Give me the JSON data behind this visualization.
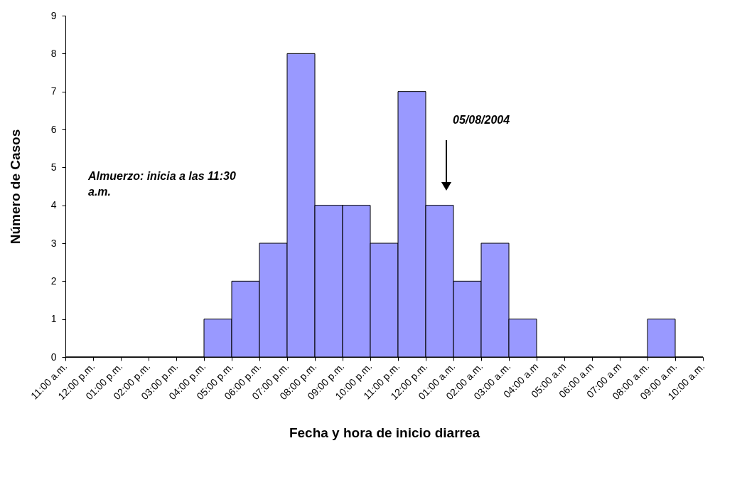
{
  "chart_data": {
    "type": "histogram",
    "xlabel": "Fecha y hora de inicio diarrea",
    "ylabel": "Número de Casos",
    "bins": [
      "2004-08-04T11:00",
      "2004-08-04T12:00",
      "2004-08-04T13:00",
      "2004-08-04T14:00",
      "2004-08-04T15:00",
      "2004-08-04T16:00",
      "2004-08-04T17:00",
      "2004-08-04T18:00",
      "2004-08-04T19:00",
      "2004-08-04T20:00",
      "2004-08-04T21:00",
      "2004-08-04T22:00",
      "2004-08-04T23:00",
      "2004-08-05T00:00",
      "2004-08-05T01:00",
      "2004-08-05T02:00",
      "2004-08-05T03:00",
      "2004-08-05T04:00",
      "2004-08-05T05:00",
      "2004-08-05T06:00",
      "2004-08-05T07:00",
      "2004-08-05T08:00",
      "2004-08-05T09:00",
      "2004-08-05T10:00"
    ],
    "values": [
      0,
      0,
      0,
      0,
      0,
      1,
      2,
      3,
      8,
      4,
      4,
      3,
      7,
      4,
      2,
      3,
      1,
      0,
      0,
      0,
      0,
      1,
      0
    ],
    "color": "#9999ff",
    "xlim": [
      "2004-08-04T11:00",
      "2004-08-05T10:00"
    ],
    "ylim": [
      0,
      9
    ],
    "yticks": [
      0,
      1,
      2,
      3,
      4,
      5,
      6,
      7,
      8,
      9
    ],
    "xticks": [
      {
        "value": "2004-08-04T11:00",
        "label": "11:00 a.m."
      },
      {
        "value": "2004-08-04T12:00",
        "label": "12:00 p.m."
      },
      {
        "value": "2004-08-04T13:00",
        "label": "01:00 p.m."
      },
      {
        "value": "2004-08-04T14:00",
        "label": "02:00 p.m."
      },
      {
        "value": "2004-08-04T15:00",
        "label": "03:00 p.m."
      },
      {
        "value": "2004-08-04T16:00",
        "label": "04:00 p.m."
      },
      {
        "value": "2004-08-04T17:00",
        "label": "05:00 p.m."
      },
      {
        "value": "2004-08-04T18:00",
        "label": "06:00 p.m."
      },
      {
        "value": "2004-08-04T19:00",
        "label": "07:00 p.m."
      },
      {
        "value": "2004-08-04T20:00",
        "label": "08:00 p.m."
      },
      {
        "value": "2004-08-04T21:00",
        "label": "09:00 p.m."
      },
      {
        "value": "2004-08-04T22:00",
        "label": "10:00 p.m."
      },
      {
        "value": "2004-08-04T23:00",
        "label": "11:00 p.m."
      },
      {
        "value": "2004-08-05T00:00",
        "label": "12:00 p.m."
      },
      {
        "value": "2004-08-05T01:00",
        "label": "01:00 a.m."
      },
      {
        "value": "2004-08-05T02:00",
        "label": "02:00 a.m."
      },
      {
        "value": "2004-08-05T03:00",
        "label": "03:00 a.m."
      },
      {
        "value": "2004-08-05T04:00",
        "label": "04:00 a.m"
      },
      {
        "value": "2004-08-05T05:00",
        "label": "05:00 a.m"
      },
      {
        "value": "2004-08-05T06:00",
        "label": "06:00 a.m"
      },
      {
        "value": "2004-08-05T07:00",
        "label": "07:00 a.m"
      },
      {
        "value": "2004-08-05T08:00",
        "label": "08:00 a.m."
      },
      {
        "value": "2004-08-05T09:00",
        "label": "09:00 a.m."
      },
      {
        "value": "2004-08-05T10:00",
        "label": "10:00 a.m."
      }
    ],
    "grid": false,
    "annotations": [
      "Almuerzo: inicia a las 11:30 a.m.",
      "05/08/2004"
    ]
  }
}
